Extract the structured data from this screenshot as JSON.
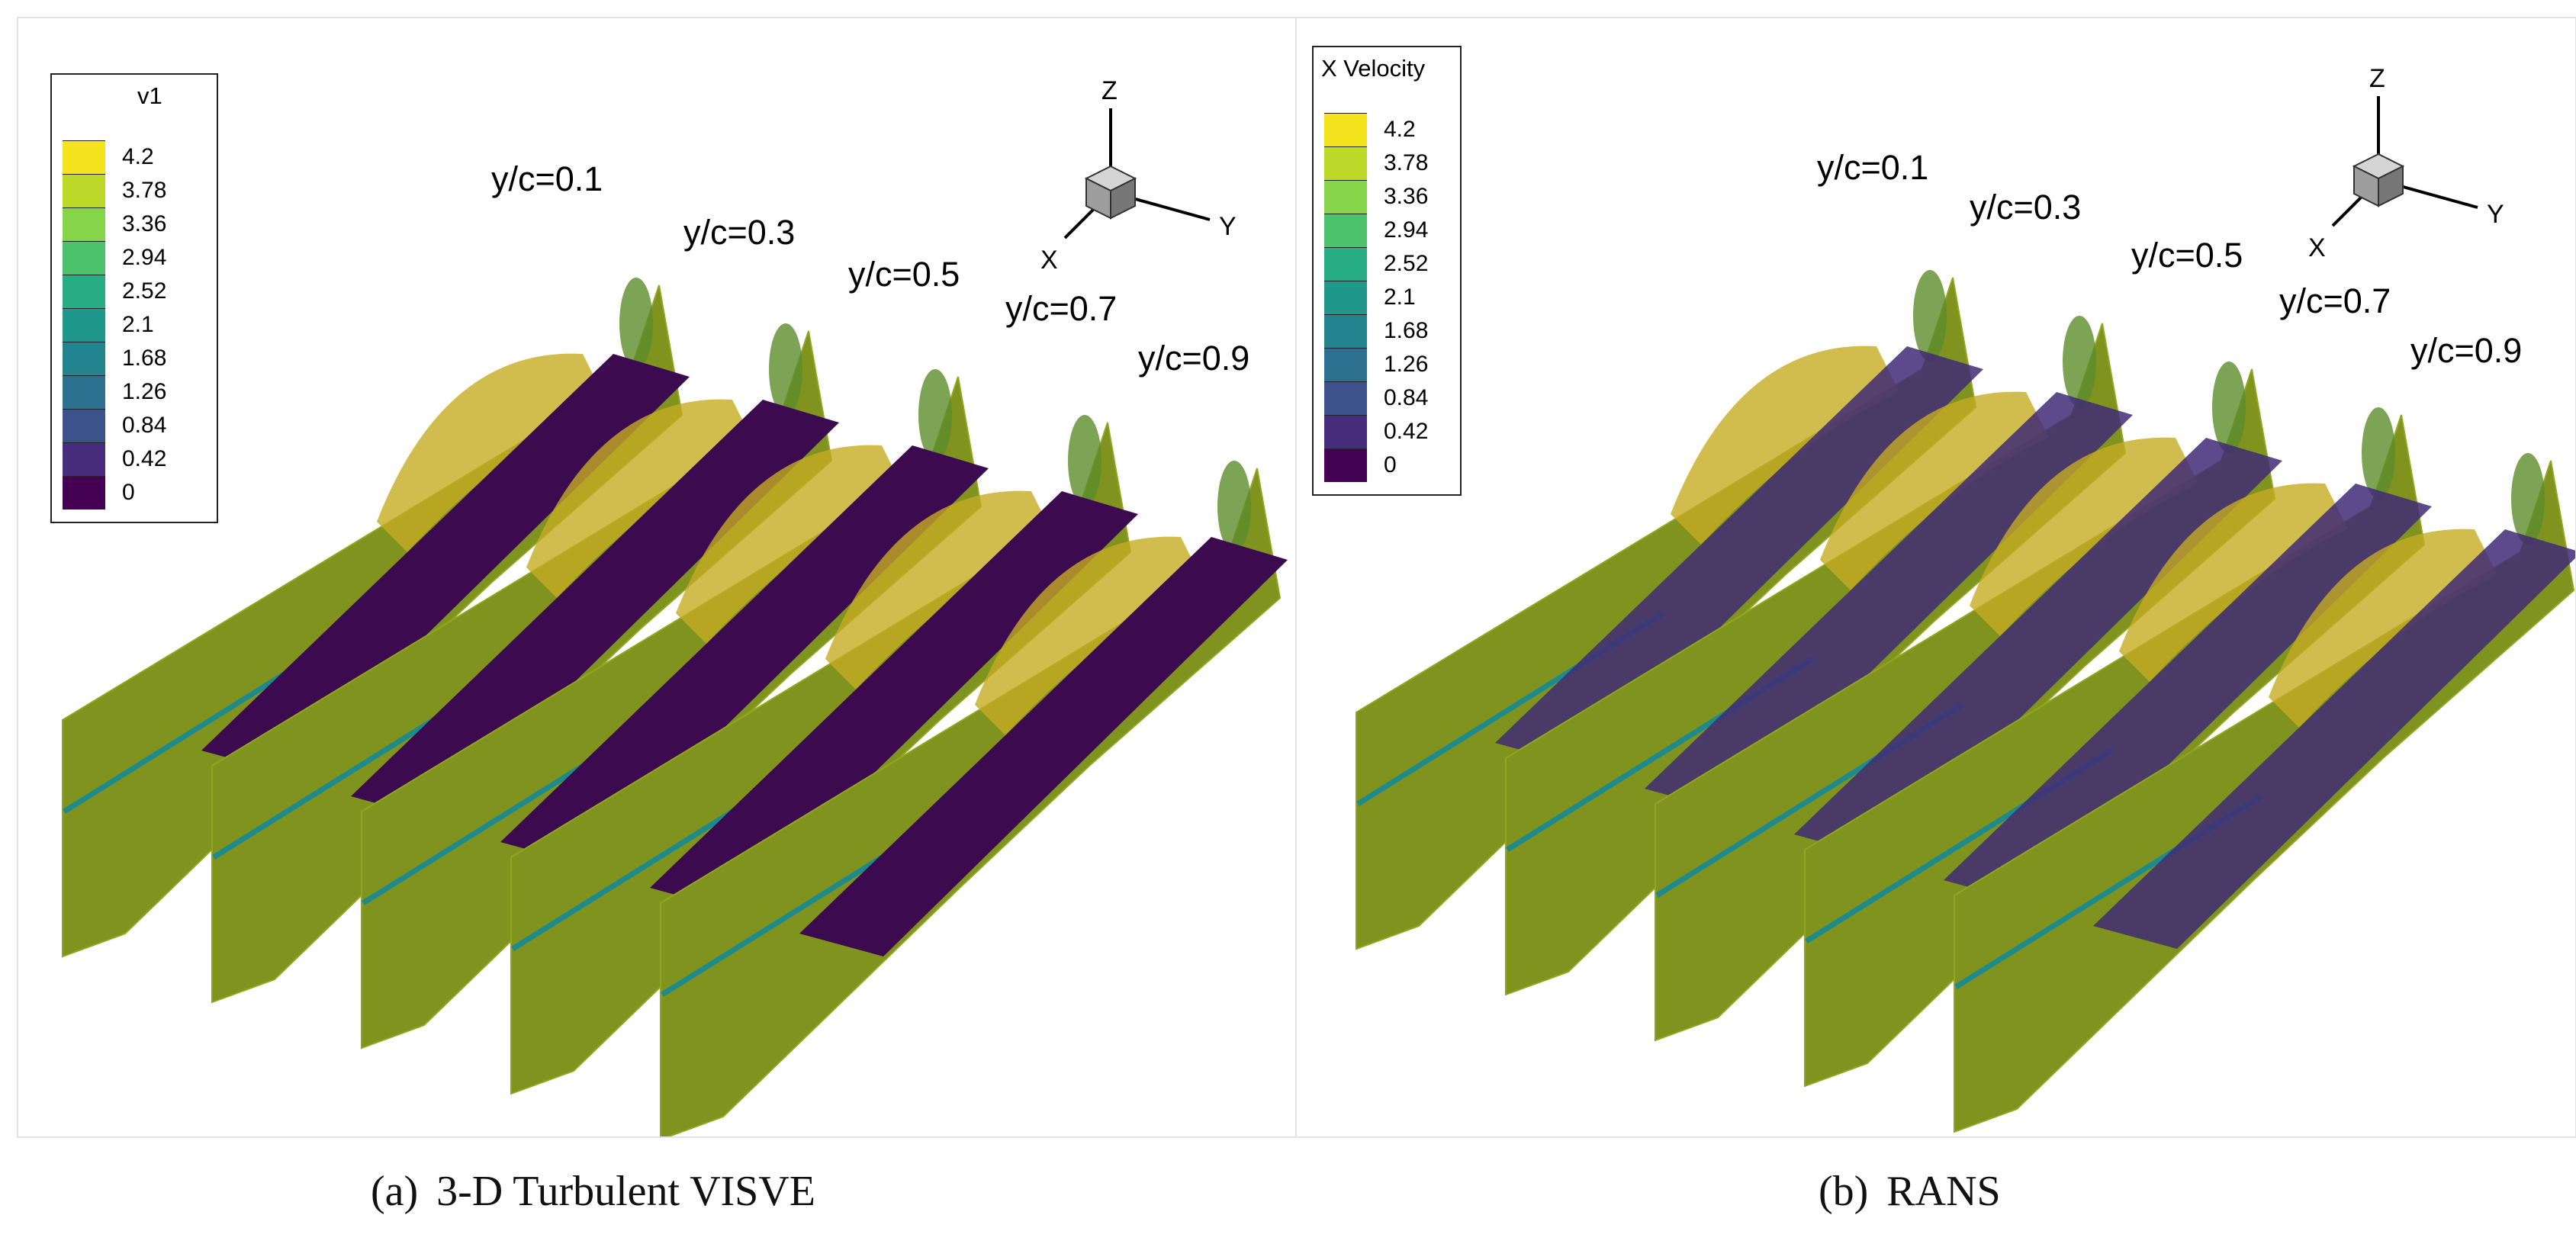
{
  "colors": {
    "surface_olive": "#7f931e",
    "surface_edge": "#92a51f",
    "blade_dark": "#3b0a4f",
    "blade_rans": "#3f2a75",
    "bulge_yellow": "#c5ab22",
    "wake_teal": "#1f8a8c"
  },
  "panels": [
    {
      "caption_tag": "(a)",
      "caption_text": "3-D Turbulent VISVE",
      "legend": {
        "title": "v1",
        "levels": [
          {
            "label": "4.2",
            "color": "#f3e41d"
          },
          {
            "label": "3.78",
            "color": "#bcd92a"
          },
          {
            "label": "3.36",
            "color": "#86d449"
          },
          {
            "label": "2.94",
            "color": "#4cc26c"
          },
          {
            "label": "2.52",
            "color": "#27ad81"
          },
          {
            "label": "2.1",
            "color": "#1f988b"
          },
          {
            "label": "1.68",
            "color": "#23838e"
          },
          {
            "label": "1.26",
            "color": "#2d6f8e"
          },
          {
            "label": "0.84",
            "color": "#3b528b"
          },
          {
            "label": "0.42",
            "color": "#472d7b"
          },
          {
            "label": "0",
            "color": "#440154"
          }
        ]
      },
      "axes": {
        "x": "X",
        "y": "Y",
        "z": "Z"
      },
      "stations": [
        "y/c=0.1",
        "y/c=0.3",
        "y/c=0.5",
        "y/c=0.7",
        "y/c=0.9"
      ]
    },
    {
      "caption_tag": "(b)",
      "caption_text": "RANS",
      "legend": {
        "title": "X Velocity",
        "levels": [
          {
            "label": "4.2",
            "color": "#f3e41d"
          },
          {
            "label": "3.78",
            "color": "#bcd92a"
          },
          {
            "label": "3.36",
            "color": "#86d449"
          },
          {
            "label": "2.94",
            "color": "#4cc26c"
          },
          {
            "label": "2.52",
            "color": "#27ad81"
          },
          {
            "label": "2.1",
            "color": "#1f988b"
          },
          {
            "label": "1.68",
            "color": "#23838e"
          },
          {
            "label": "1.26",
            "color": "#2d6f8e"
          },
          {
            "label": "0.84",
            "color": "#3b528b"
          },
          {
            "label": "0.42",
            "color": "#472d7b"
          },
          {
            "label": "0",
            "color": "#440154"
          }
        ]
      },
      "axes": {
        "x": "X",
        "y": "Y",
        "z": "Z"
      },
      "stations": [
        "y/c=0.1",
        "y/c=0.3",
        "y/c=0.5",
        "y/c=0.7",
        "y/c=0.9"
      ]
    }
  ]
}
